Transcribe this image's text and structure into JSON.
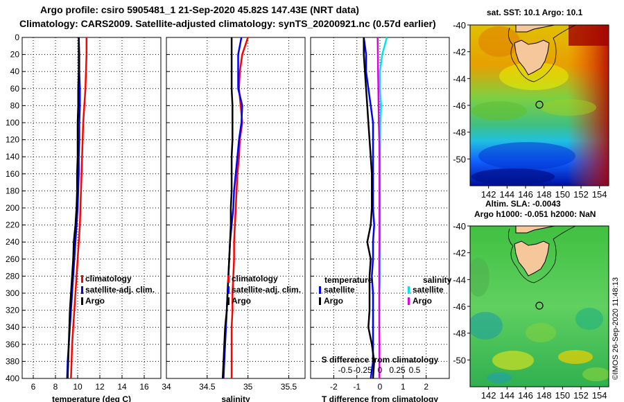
{
  "title": {
    "line1": "Argo profile: csiro 5905481_1 21-Sep-2020 45.82S 147.43E (NRT data)",
    "line2": "Climatology: CARS2009. Satellite-adjusted climatology: synTS_20200921.nc (0.57d earlier)"
  },
  "colors": {
    "climatology": "#ff0000",
    "satellite": "#0000ff",
    "argo": "#000000",
    "satellite_salinity": "#00e5e5",
    "argo_salinity": "#e000e0"
  },
  "depth_axis": {
    "ylim": [
      0,
      400
    ],
    "ticks": [
      0,
      20,
      40,
      60,
      80,
      100,
      120,
      140,
      160,
      180,
      200,
      220,
      240,
      260,
      280,
      300,
      320,
      340,
      360,
      380,
      400
    ]
  },
  "chart_data": [
    {
      "type": "line",
      "id": "temperature",
      "xlabel": "temperature (deg C)",
      "xlim": [
        5,
        17.5
      ],
      "xticks": [
        6,
        8,
        10,
        12,
        14,
        16
      ],
      "ylabel": "depth",
      "ylim": [
        0,
        400
      ],
      "legend": [
        "climatology",
        "satellite-adj. clim.",
        "Argo"
      ],
      "series": [
        {
          "name": "climatology",
          "color": "#ff0000",
          "x": [
            10.8,
            10.8,
            10.75,
            10.7,
            10.6,
            10.5,
            10.45,
            10.4,
            10.35,
            10.3,
            10.25,
            10.2,
            10.1,
            10.0,
            9.9,
            9.8,
            9.7,
            9.6,
            9.5,
            9.45,
            9.4
          ],
          "y": [
            0,
            20,
            40,
            60,
            80,
            100,
            120,
            140,
            160,
            180,
            200,
            220,
            240,
            260,
            280,
            300,
            320,
            340,
            360,
            380,
            400
          ]
        },
        {
          "name": "satellite-adj. clim.",
          "color": "#0000ff",
          "x": [
            10.1,
            10.15,
            10.15,
            10.2,
            10.2,
            10.15,
            10.15,
            10.1,
            10.1,
            10.05,
            10.0,
            9.9,
            9.8,
            9.7,
            9.6,
            9.5,
            9.4,
            9.3,
            9.2,
            9.1,
            9.05
          ],
          "y": [
            0,
            20,
            40,
            60,
            80,
            100,
            120,
            140,
            160,
            180,
            200,
            220,
            240,
            260,
            280,
            300,
            320,
            340,
            360,
            380,
            400
          ]
        },
        {
          "name": "Argo",
          "color": "#000000",
          "x": [
            10.1,
            10.1,
            10.1,
            10.05,
            10.05,
            10.0,
            10.0,
            10.0,
            9.95,
            9.95,
            9.9,
            9.8,
            9.65,
            9.6,
            9.5,
            9.4,
            9.3,
            9.25,
            9.2,
            9.15,
            9.1
          ],
          "y": [
            0,
            20,
            40,
            60,
            80,
            100,
            120,
            140,
            160,
            180,
            200,
            220,
            240,
            260,
            280,
            300,
            320,
            340,
            360,
            380,
            400
          ]
        }
      ]
    },
    {
      "type": "line",
      "id": "salinity",
      "xlabel": "salinity",
      "xlim": [
        34.0,
        35.7
      ],
      "xticks": [
        34,
        34.5,
        35,
        35.5
      ],
      "ylabel": "depth",
      "ylim": [
        0,
        400
      ],
      "legend": [
        "climatology",
        "satellite-adj. clim.",
        "Argo"
      ],
      "series": [
        {
          "name": "climatology",
          "color": "#ff0000",
          "x": [
            35.0,
            34.93,
            34.9,
            34.89,
            34.91,
            34.93,
            34.9,
            34.89,
            34.87,
            34.86,
            34.85,
            34.84,
            34.83,
            34.83,
            34.82,
            34.81,
            34.81,
            34.8,
            34.8,
            34.8,
            34.8
          ],
          "y": [
            0,
            20,
            40,
            60,
            80,
            100,
            120,
            140,
            160,
            180,
            200,
            220,
            240,
            260,
            280,
            300,
            320,
            340,
            360,
            380,
            400
          ]
        },
        {
          "name": "satellite-adj. clim.",
          "color": "#0000ff",
          "x": [
            34.92,
            34.88,
            34.88,
            34.88,
            34.93,
            34.92,
            34.89,
            34.87,
            34.85,
            34.83,
            34.82,
            34.8,
            34.78,
            34.77,
            34.76,
            34.75,
            34.74,
            34.73,
            34.72,
            34.71,
            34.7
          ],
          "y": [
            0,
            20,
            40,
            60,
            80,
            100,
            120,
            140,
            160,
            180,
            200,
            220,
            240,
            260,
            280,
            300,
            320,
            340,
            360,
            380,
            400
          ]
        },
        {
          "name": "Argo",
          "color": "#000000",
          "x": [
            34.8,
            34.8,
            34.8,
            34.8,
            34.81,
            34.81,
            34.81,
            34.8,
            34.8,
            34.8,
            34.79,
            34.79,
            34.78,
            34.77,
            34.76,
            34.75,
            34.74,
            34.72,
            34.71,
            34.7,
            34.69
          ],
          "y": [
            0,
            20,
            40,
            60,
            80,
            100,
            120,
            140,
            160,
            180,
            200,
            220,
            240,
            260,
            280,
            300,
            320,
            340,
            360,
            380,
            400
          ]
        }
      ]
    },
    {
      "type": "line",
      "id": "difference",
      "xlabel": "T difference from climatology",
      "xlabel_top": "S difference from climatology",
      "xlim": [
        -3.0,
        3.0
      ],
      "xticks": [
        -2,
        -1,
        0,
        1,
        2
      ],
      "xticks_top_labels": [
        "-0.5",
        "-0.25",
        "0",
        "0.25",
        "0.5"
      ],
      "ylabel": "depth",
      "ylim": [
        0,
        400
      ],
      "legend_headers": [
        "temperature",
        "salinity"
      ],
      "legend": [
        "satellite",
        "Argo",
        "satellite",
        "Argo"
      ],
      "series": [
        {
          "name": "T satellite",
          "color": "#0000ff",
          "x": [
            -0.7,
            -0.6,
            -0.6,
            -0.5,
            -0.4,
            -0.3,
            -0.3,
            -0.3,
            -0.3,
            -0.3,
            -0.3,
            -0.25,
            -0.3,
            -0.3,
            -0.35,
            -0.3,
            -0.3,
            -0.3,
            -0.3,
            -0.3,
            -0.4
          ],
          "y": [
            0,
            20,
            40,
            60,
            80,
            100,
            120,
            140,
            160,
            180,
            200,
            220,
            240,
            260,
            280,
            300,
            320,
            340,
            360,
            380,
            400
          ]
        },
        {
          "name": "T Argo",
          "color": "#000000",
          "x": [
            -0.7,
            -0.7,
            -0.65,
            -0.6,
            -0.55,
            -0.5,
            -0.45,
            -0.4,
            -0.35,
            -0.35,
            -0.35,
            -0.4,
            -0.55,
            -0.4,
            -0.45,
            -0.45,
            -0.45,
            -0.5,
            -0.35,
            -0.25,
            -0.3
          ],
          "y": [
            0,
            20,
            40,
            60,
            80,
            100,
            120,
            140,
            160,
            180,
            200,
            220,
            240,
            260,
            280,
            300,
            320,
            340,
            360,
            380,
            400
          ]
        },
        {
          "name": "S satellite",
          "color": "#00e5e5",
          "x": [
            0.3,
            0.1,
            0.0,
            0.0,
            0.05,
            0.02,
            0.01,
            0.0,
            0.0,
            0.0,
            0.0,
            0.0,
            0.0,
            0.0,
            0.0,
            -0.02,
            -0.02,
            -0.02,
            -0.02,
            -0.02,
            -0.03
          ],
          "y": [
            0,
            20,
            40,
            60,
            80,
            100,
            120,
            140,
            160,
            180,
            200,
            220,
            240,
            260,
            280,
            300,
            320,
            340,
            360,
            380,
            400
          ]
        },
        {
          "name": "S Argo",
          "color": "#e000e0",
          "x": [
            -0.1,
            -0.09,
            -0.08,
            -0.07,
            -0.06,
            -0.05,
            -0.03,
            -0.02,
            -0.02,
            -0.02,
            -0.02,
            -0.02,
            -0.02,
            -0.03,
            -0.03,
            -0.03,
            -0.03,
            -0.03,
            -0.02,
            -0.02,
            -0.02
          ],
          "y": [
            0,
            20,
            40,
            60,
            80,
            100,
            120,
            140,
            160,
            180,
            200,
            220,
            240,
            260,
            280,
            300,
            320,
            340,
            360,
            380,
            400
          ]
        }
      ]
    },
    {
      "type": "heatmap",
      "id": "sst-map",
      "title": "sat. SST: 10.1  Argo: 10.1",
      "xlim": [
        140,
        155
      ],
      "ylim": [
        -52,
        -40
      ],
      "xticks": [
        142,
        144,
        146,
        148,
        150,
        152,
        154
      ],
      "yticks": [
        -40,
        -42,
        -44,
        -46,
        -48,
        -50
      ],
      "argo_position": {
        "lon": 147.43,
        "lat": -45.82
      }
    },
    {
      "type": "heatmap",
      "id": "sla-map",
      "title": "Altim. SLA: -0.0043",
      "subtitle": "Argo h1000: -0.051  h2000: NaN",
      "xlim": [
        140,
        155
      ],
      "ylim": [
        -52,
        -40
      ],
      "xticks": [
        142,
        144,
        146,
        148,
        150,
        152,
        154
      ],
      "yticks": [
        -40,
        -42,
        -44,
        -46,
        -48,
        -50
      ],
      "argo_position": {
        "lon": 147.43,
        "lat": -45.82
      }
    }
  ],
  "credit": "©IMOS 26-Sep-2020 11:48:13"
}
